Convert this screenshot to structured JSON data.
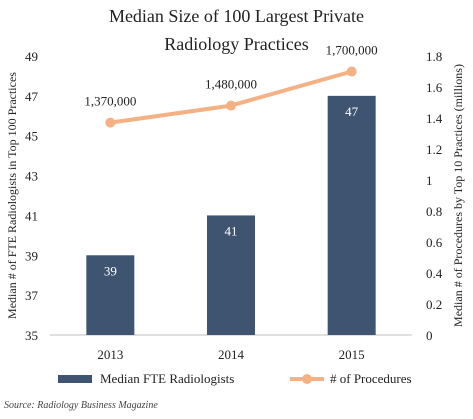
{
  "title_lines": [
    "Median Size of 100 Largest Private",
    "Radiology Practices"
  ],
  "source": "Source: Radiology Business Magazine",
  "chart_data": {
    "type": "bar+line",
    "categories": [
      "2013",
      "2014",
      "2015"
    ],
    "series": [
      {
        "name": "Median FTE Radiologists",
        "type": "bar",
        "axis": "left",
        "values": [
          39,
          41,
          47
        ],
        "data_labels": [
          "39",
          "41",
          "47"
        ],
        "color": "#3f5470"
      },
      {
        "name": "# of Procedures",
        "type": "line",
        "axis": "right",
        "values": [
          1.37,
          1.48,
          1.7
        ],
        "data_labels": [
          "1,370,000",
          "1,480,000",
          "1,700,000"
        ],
        "color": "#f4b183"
      }
    ],
    "y_left": {
      "label": "Median # of FTE Radiologists in Top 100 Practices",
      "range": [
        35,
        49
      ],
      "ticks": [
        "35",
        "37",
        "39",
        "41",
        "43",
        "45",
        "47",
        "49"
      ]
    },
    "y_right": {
      "label": "Median # of Procedures by Top 10 Practices (millions)",
      "range": [
        0,
        1.8
      ],
      "ticks": [
        "0",
        "0.2",
        "0.4",
        "0.6",
        "0.8",
        "1",
        "1.2",
        "1.4",
        "1.6",
        "1.8"
      ]
    },
    "grid": false,
    "legend_position": "bottom"
  }
}
